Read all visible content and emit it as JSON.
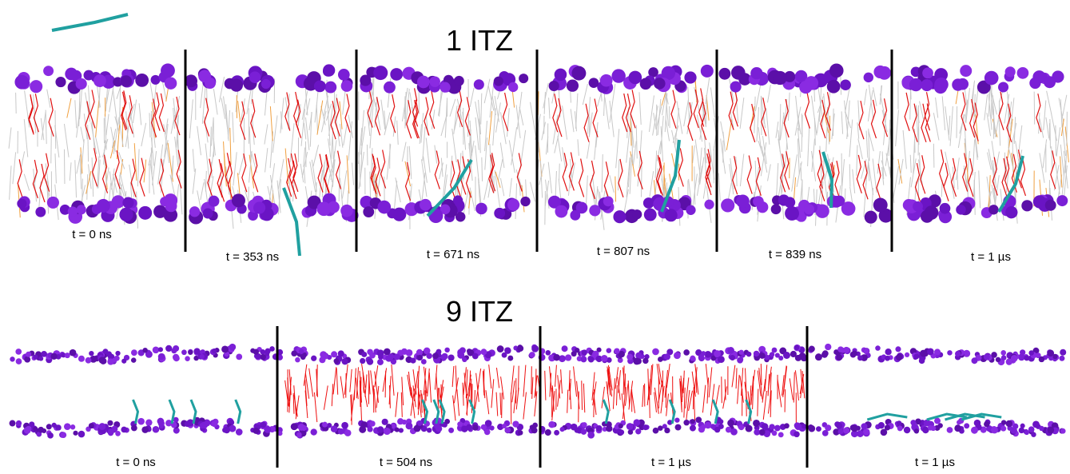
{
  "sections": [
    {
      "title": "1 ITZ",
      "labels": [
        "t = 0 ns",
        "t = 353 ns",
        "t = 671 ns",
        "t = 807 ns",
        "t = 839 ns",
        "t = 1 µs"
      ]
    },
    {
      "title": "9 ITZ",
      "labels": [
        "t = 0 ns",
        "t = 504 ns",
        "t = 1 µs",
        "t = 1 µs"
      ]
    }
  ]
}
